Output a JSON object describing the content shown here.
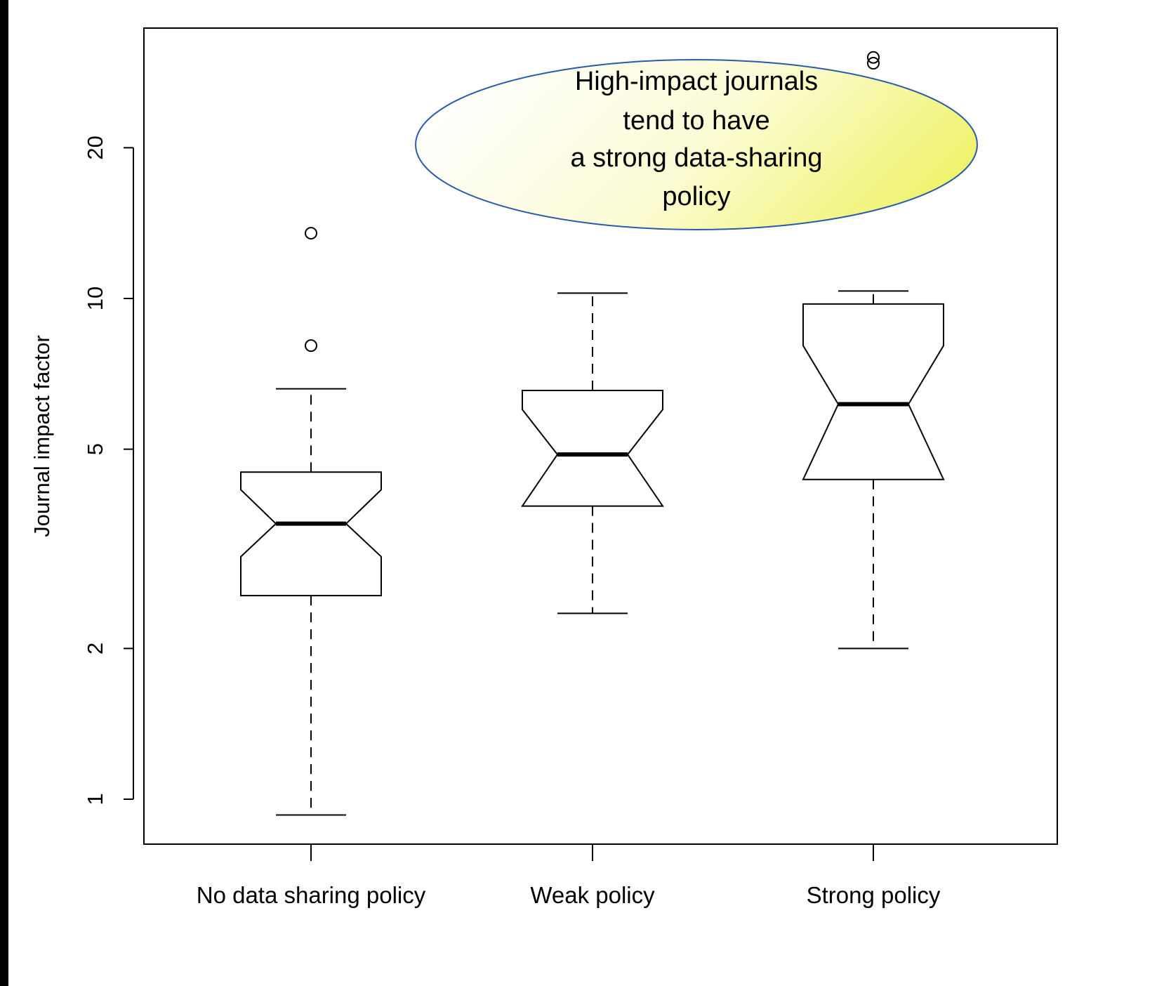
{
  "chart_data": {
    "type": "boxplot",
    "notched": true,
    "y_scale": "log",
    "ylabel": "Journal impact factor",
    "yticks": [
      1,
      2,
      5,
      10,
      20
    ],
    "ylim": [
      0.8,
      34
    ],
    "categories": [
      "No data sharing policy",
      "Weak policy",
      "Strong policy"
    ],
    "boxes": [
      {
        "whisker_low": 0.93,
        "q1": 2.55,
        "notch_low": 3.05,
        "median": 3.55,
        "notch_high": 4.15,
        "q3": 4.5,
        "whisker_high": 6.6,
        "outliers": [
          8.05,
          13.5
        ]
      },
      {
        "whisker_low": 2.35,
        "q1": 3.85,
        "notch_low": 3.85,
        "median": 4.88,
        "notch_high": 6.0,
        "q3": 6.55,
        "whisker_high": 10.25,
        "outliers": []
      },
      {
        "whisker_low": 2.0,
        "q1": 4.35,
        "notch_low": 4.35,
        "median": 6.15,
        "notch_high": 8.05,
        "q3": 9.75,
        "whisker_high": 10.35,
        "outliers": [
          29.5,
          30.3
        ]
      }
    ],
    "annotation": {
      "lines": [
        "High-impact journals",
        "tend to have",
        "a strong data-sharing",
        "policy"
      ],
      "fill_colors": [
        "#ffffff",
        "#fcfcd6",
        "#eef266"
      ],
      "border_color": "#2a5aa8"
    }
  }
}
